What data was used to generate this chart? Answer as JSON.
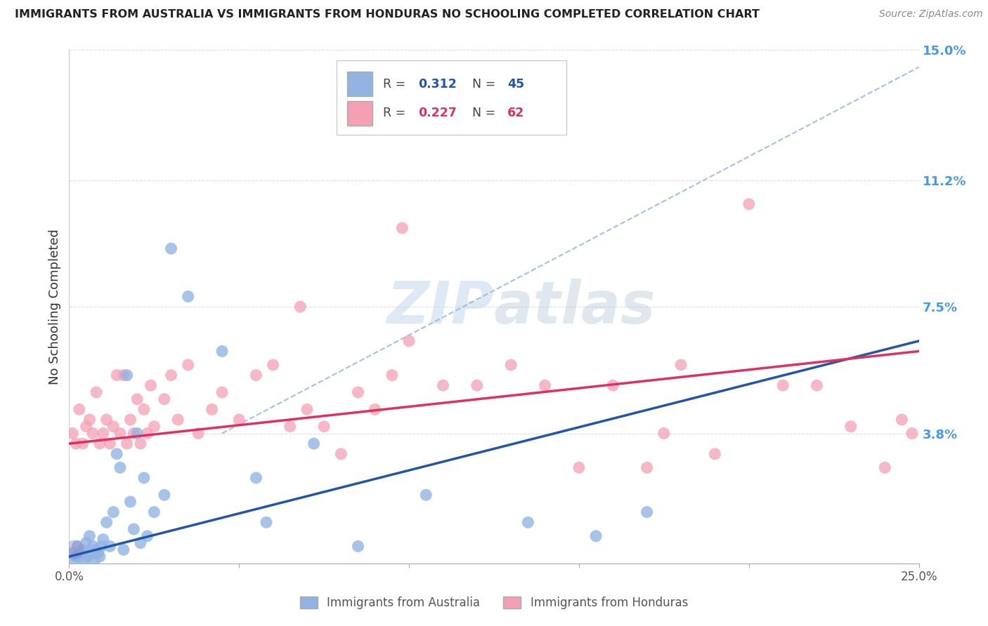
{
  "title": "IMMIGRANTS FROM AUSTRALIA VS IMMIGRANTS FROM HONDURAS NO SCHOOLING COMPLETED CORRELATION CHART",
  "source": "Source: ZipAtlas.com",
  "ylabel": "No Schooling Completed",
  "xlim": [
    0.0,
    25.0
  ],
  "ylim": [
    0.0,
    15.0
  ],
  "ytick_values": [
    0.0,
    3.8,
    7.5,
    11.2,
    15.0
  ],
  "ytick_labels": [
    "",
    "3.8%",
    "7.5%",
    "11.2%",
    "15.0%"
  ],
  "australia_R": 0.312,
  "australia_N": 45,
  "honduras_R": 0.227,
  "honduras_N": 62,
  "australia_color": "#92b4e3",
  "honduras_color": "#f4a0b4",
  "australia_line_color": "#2255aa",
  "honduras_line_color": "#e03060",
  "dashed_line_color": "#99bbdd",
  "watermark_color": "#ccddef",
  "background_color": "#ffffff",
  "grid_color": "#dddddd",
  "title_color": "#222222",
  "source_color": "#888888",
  "tick_color_right": "#4499ee",
  "aus_x": [
    0.1,
    0.15,
    0.2,
    0.25,
    0.3,
    0.35,
    0.4,
    0.45,
    0.5,
    0.55,
    0.6,
    0.65,
    0.7,
    0.75,
    0.8,
    0.85,
    0.9,
    0.95,
    1.0,
    1.1,
    1.2,
    1.3,
    1.4,
    1.5,
    1.6,
    1.7,
    1.8,
    1.9,
    2.0,
    2.1,
    2.2,
    2.3,
    2.5,
    2.8,
    3.0,
    3.5,
    4.5,
    5.5,
    5.8,
    7.2,
    8.5,
    10.5,
    13.5,
    15.5,
    17.0
  ],
  "aus_y": [
    0.3,
    0.1,
    0.2,
    0.5,
    0.2,
    0.3,
    0.4,
    0.1,
    0.6,
    0.2,
    0.8,
    0.3,
    0.5,
    0.1,
    0.4,
    0.3,
    0.2,
    0.5,
    0.7,
    1.2,
    0.5,
    1.5,
    3.2,
    2.8,
    0.4,
    5.5,
    1.8,
    1.0,
    3.8,
    0.6,
    2.5,
    0.8,
    1.5,
    2.0,
    9.2,
    7.8,
    6.2,
    2.5,
    1.2,
    3.5,
    0.5,
    2.0,
    1.2,
    0.8,
    1.5
  ],
  "hon_x": [
    0.1,
    0.2,
    0.3,
    0.4,
    0.5,
    0.6,
    0.7,
    0.8,
    0.9,
    1.0,
    1.1,
    1.2,
    1.3,
    1.4,
    1.5,
    1.6,
    1.7,
    1.8,
    1.9,
    2.0,
    2.1,
    2.2,
    2.3,
    2.4,
    2.5,
    2.8,
    3.0,
    3.2,
    3.5,
    3.8,
    4.2,
    4.5,
    5.0,
    5.5,
    6.0,
    6.5,
    7.0,
    7.5,
    8.0,
    8.5,
    9.0,
    9.5,
    10.0,
    11.0,
    12.0,
    13.0,
    14.0,
    15.0,
    16.0,
    17.0,
    18.0,
    19.0,
    20.0,
    21.0,
    22.0,
    23.0,
    24.0,
    24.5,
    6.8,
    9.8,
    17.5,
    24.8
  ],
  "hon_y": [
    3.8,
    3.5,
    4.5,
    3.5,
    4.0,
    4.2,
    3.8,
    5.0,
    3.5,
    3.8,
    4.2,
    3.5,
    4.0,
    5.5,
    3.8,
    5.5,
    3.5,
    4.2,
    3.8,
    4.8,
    3.5,
    4.5,
    3.8,
    5.2,
    4.0,
    4.8,
    5.5,
    4.2,
    5.8,
    3.8,
    4.5,
    5.0,
    4.2,
    5.5,
    5.8,
    4.0,
    4.5,
    4.0,
    3.2,
    5.0,
    4.5,
    5.5,
    6.5,
    5.2,
    5.2,
    5.8,
    5.2,
    2.8,
    5.2,
    2.8,
    5.8,
    3.2,
    10.5,
    5.2,
    5.2,
    4.0,
    2.8,
    4.2,
    7.5,
    9.8,
    3.8,
    3.8
  ],
  "aus_line_x0": 0.0,
  "aus_line_y0": 0.2,
  "aus_line_x1": 25.0,
  "aus_line_y1": 6.5,
  "hon_line_x0": 0.0,
  "hon_line_y0": 3.5,
  "hon_line_x1": 25.0,
  "hon_line_y1": 6.2,
  "dash_line_x0": 4.5,
  "dash_line_y0": 3.8,
  "dash_line_x1": 25.0,
  "dash_line_y1": 14.5
}
